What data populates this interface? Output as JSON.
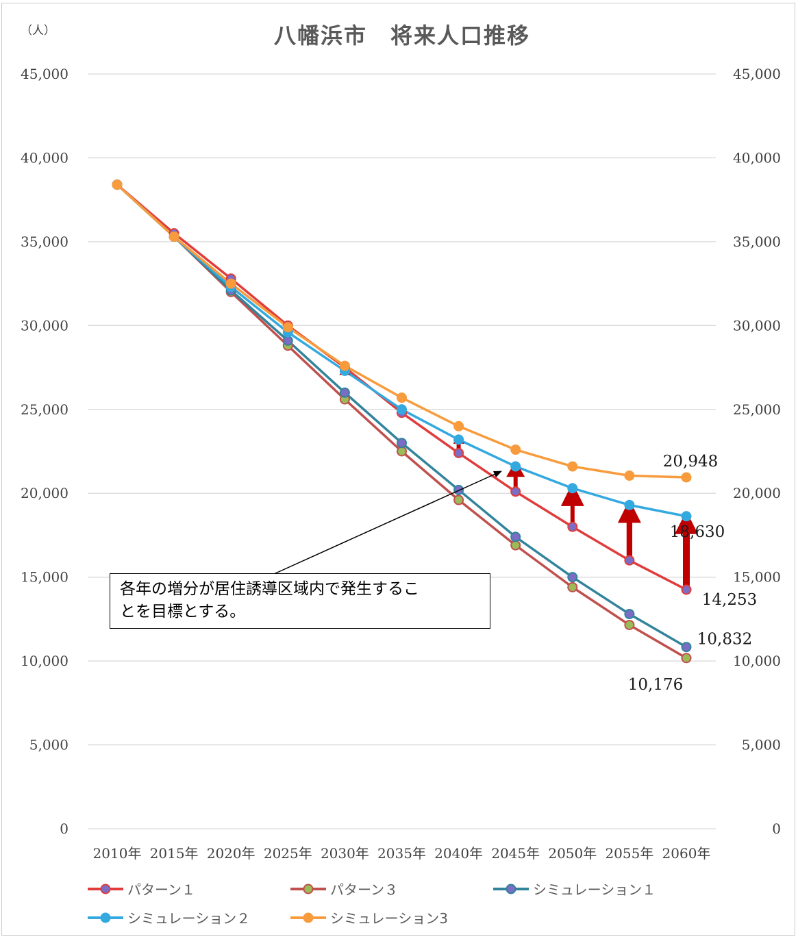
{
  "chart_data": {
    "type": "line",
    "title": "八幡浜市　将来人口推移",
    "unit_label": "（人）",
    "categories": [
      "2010年",
      "2015年",
      "2020年",
      "2025年",
      "2030年",
      "2035年",
      "2040年",
      "2045年",
      "2050年",
      "2055年",
      "2060年"
    ],
    "ylim": [
      0,
      45000
    ],
    "yticks": [
      "0",
      "5,000",
      "10,000",
      "15,000",
      "20,000",
      "25,000",
      "30,000",
      "35,000",
      "40,000",
      "45,000"
    ],
    "ytick_values": [
      0,
      5000,
      10000,
      15000,
      20000,
      25000,
      30000,
      35000,
      40000,
      45000
    ],
    "grid": true,
    "legend_position": "bottom",
    "series": [
      {
        "name": "パターン１",
        "line_color": "#e03c3c",
        "marker_color": "#7b6cc4",
        "values": [
          38400,
          35500,
          32800,
          30000,
          27500,
          24800,
          22400,
          20100,
          18000,
          16000,
          14253
        ]
      },
      {
        "name": "パターン３",
        "line_color": "#c0504d",
        "marker_color": "#9bbb59",
        "values": [
          38400,
          35300,
          32000,
          28800,
          25600,
          22500,
          19600,
          16900,
          14400,
          12150,
          10176
        ]
      },
      {
        "name": "シミュレーション１",
        "line_color": "#31849b",
        "marker_color": "#7b6cc4",
        "values": [
          38400,
          35300,
          32100,
          29100,
          26000,
          23000,
          20200,
          17400,
          15000,
          12800,
          10832
        ]
      },
      {
        "name": "シミュレーション２",
        "line_color": "#33a9e0",
        "marker_color": "#33a9e0",
        "values": [
          38400,
          35300,
          32300,
          29600,
          27300,
          25000,
          23200,
          21600,
          20300,
          19300,
          18630
        ]
      },
      {
        "name": "シミュレーション3",
        "line_color": "#f79b3c",
        "marker_color": "#f79b3c",
        "values": [
          38400,
          35300,
          32500,
          29900,
          27600,
          25700,
          24000,
          22600,
          21600,
          21050,
          20948
        ]
      }
    ],
    "data_labels": [
      {
        "text": "20,948",
        "series": 4,
        "index": 10
      },
      {
        "text": "18,630",
        "series": 3,
        "index": 10
      },
      {
        "text": "14,253",
        "series": 0,
        "index": 10
      },
      {
        "text": "10,832",
        "series": 2,
        "index": 10
      },
      {
        "text": "10,176",
        "series": 1,
        "index": 10
      }
    ],
    "arrows": {
      "color": "#c00000",
      "from_series": 0,
      "to_series": 3,
      "indices": [
        4,
        5,
        6,
        7,
        8,
        9,
        10
      ]
    }
  },
  "annotation": {
    "text_line1": "各年の増分が居住誘導区域内で発生するこ",
    "text_line2": "とを目標とする。"
  }
}
